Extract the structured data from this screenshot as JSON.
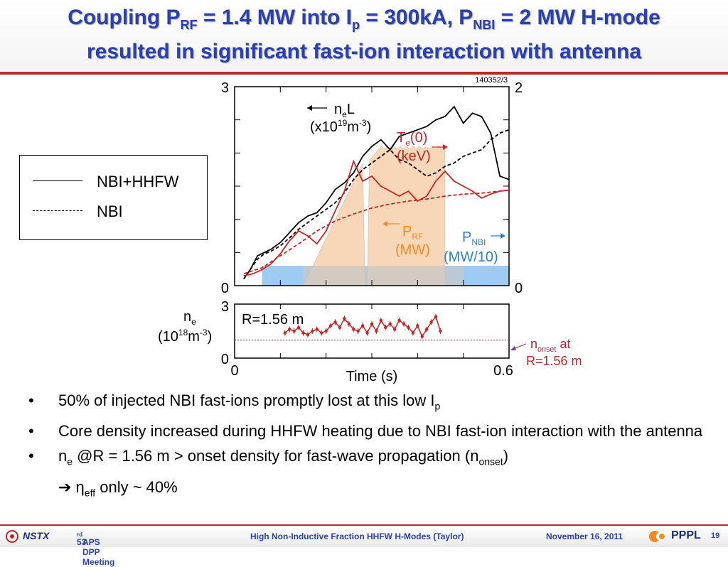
{
  "slide": {
    "title_line1_parts": [
      "Coupling P",
      "RF",
      " = 1.4 MW into I",
      "p",
      " = 300kA, P",
      "NBI",
      " = 2 MW H-mode"
    ],
    "title_line2": "resulted in significant fast-ion interaction with antenna"
  },
  "legend": {
    "items": [
      {
        "label": "NBI+HHFW",
        "style": "solid"
      },
      {
        "label": "NBI",
        "style": "dashed"
      }
    ]
  },
  "chart_data": {
    "type": "line",
    "shot_label": "140352/3",
    "top_panel": {
      "left_axis_ticks": [
        "3",
        "0"
      ],
      "right_axis_ticks": [
        "2",
        "0"
      ],
      "annotations": [
        {
          "text_parts": [
            "n",
            "e",
            "L"
          ],
          "color": "#000000"
        },
        {
          "text_parts": [
            "(x10",
            "19",
            "m",
            "-3",
            ")"
          ],
          "color": "#000000"
        },
        {
          "text_parts": [
            "T",
            "e",
            "(0)"
          ],
          "color": "#cc2222"
        },
        {
          "text": "(keV)",
          "color": "#cc2222"
        },
        {
          "text_parts": [
            "P",
            "RF"
          ],
          "color": "#f08a24"
        },
        {
          "text": "(MW)",
          "color": "#f08a24"
        },
        {
          "text_parts": [
            "P",
            "NBI"
          ],
          "color": "#2a7fd4"
        },
        {
          "text": "(MW/10)",
          "color": "#2a7fd4"
        }
      ],
      "series": [
        {
          "name": "ne L NBI+HHFW",
          "color": "#000000",
          "style": "solid",
          "x": [
            0.02,
            0.035,
            0.05,
            0.065,
            0.08,
            0.1,
            0.12,
            0.14,
            0.16,
            0.18,
            0.2,
            0.22,
            0.24,
            0.26,
            0.28,
            0.3,
            0.32,
            0.34,
            0.36,
            0.38,
            0.4,
            0.42,
            0.44,
            0.46,
            0.48,
            0.5,
            0.52,
            0.54,
            0.56,
            0.58,
            0.6
          ],
          "y": [
            0.1,
            0.25,
            0.45,
            0.5,
            0.55,
            0.65,
            0.8,
            0.95,
            1.05,
            1.1,
            1.25,
            1.45,
            1.55,
            1.7,
            1.95,
            2.1,
            2.2,
            2.05,
            2.25,
            2.3,
            2.35,
            2.4,
            2.5,
            2.55,
            2.7,
            2.45,
            2.6,
            2.55,
            2.3,
            1.65,
            1.6
          ]
        },
        {
          "name": "ne L NBI",
          "color": "#000000",
          "style": "dashed",
          "x": [
            0.02,
            0.035,
            0.05,
            0.065,
            0.08,
            0.1,
            0.12,
            0.14,
            0.16,
            0.18,
            0.2,
            0.22,
            0.24,
            0.26,
            0.28,
            0.3,
            0.32,
            0.34,
            0.36,
            0.38,
            0.4,
            0.42,
            0.44,
            0.46,
            0.48,
            0.5,
            0.52,
            0.54,
            0.56,
            0.58,
            0.6
          ],
          "y": [
            0.1,
            0.25,
            0.4,
            0.48,
            0.52,
            0.6,
            0.72,
            0.85,
            0.95,
            1.05,
            1.15,
            1.25,
            1.4,
            1.6,
            1.75,
            1.85,
            1.95,
            2.05,
            1.9,
            1.85,
            1.75,
            1.65,
            1.7,
            1.8,
            1.85,
            1.95,
            2.0,
            2.05,
            2.2,
            2.3,
            2.35
          ]
        },
        {
          "name": "Te(0) NBI+HHFW",
          "color": "#cc2222",
          "style": "solid",
          "x": [
            0.02,
            0.04,
            0.06,
            0.08,
            0.1,
            0.12,
            0.14,
            0.16,
            0.18,
            0.2,
            0.22,
            0.24,
            0.26,
            0.28,
            0.3,
            0.32,
            0.34,
            0.36,
            0.38,
            0.4,
            0.42,
            0.44,
            0.46,
            0.48,
            0.5,
            0.52,
            0.54,
            0.56,
            0.58,
            0.6
          ],
          "y": [
            0.1,
            0.12,
            0.16,
            0.22,
            0.32,
            0.45,
            0.55,
            0.5,
            0.42,
            0.55,
            0.75,
            0.95,
            1.25,
            1.05,
            1.1,
            1.0,
            0.95,
            0.9,
            0.95,
            0.85,
            0.9,
            1.05,
            1.15,
            1.05,
            1.0,
            0.95,
            0.88,
            0.92,
            0.95,
            0.96
          ]
        },
        {
          "name": "Te(0) NBI",
          "color": "#cc2222",
          "style": "dashed",
          "x": [
            0.02,
            0.06,
            0.1,
            0.14,
            0.18,
            0.22,
            0.26,
            0.3,
            0.34,
            0.38,
            0.42,
            0.46,
            0.5,
            0.54,
            0.58,
            0.6
          ],
          "y": [
            0.12,
            0.18,
            0.3,
            0.42,
            0.55,
            0.65,
            0.72,
            0.78,
            0.82,
            0.85,
            0.87,
            0.9,
            0.92,
            0.93,
            0.95,
            0.96
          ]
        }
      ],
      "prf_region": {
        "color": "#f7d3b0",
        "x_start": 0.15,
        "x_end": 0.46,
        "peak": 1.4
      },
      "pnbi_region": {
        "color": "#9ecbf2",
        "x_start": 0.06,
        "x_end": 0.6,
        "level": 0.2
      }
    },
    "bottom_panel": {
      "label": "R=1.56 m",
      "left_axis_ticks": [
        "3",
        "0"
      ],
      "ylabel_parts": [
        "n",
        "e"
      ],
      "yunit_parts": [
        "(10",
        "18",
        "m",
        "-3",
        ")"
      ],
      "xlabel": "Time (s)",
      "xticks": [
        "0",
        "0.6"
      ],
      "onset_label_parts": [
        "n",
        "onset",
        " at"
      ],
      "onset_label_line2": "R=1.56 m",
      "onset_level": 1.0,
      "series": [
        {
          "name": "ne at R=1.56 m",
          "color": "#cc2222",
          "style": "solid-with-errorbars",
          "x": [
            0.11,
            0.12,
            0.13,
            0.14,
            0.15,
            0.16,
            0.17,
            0.18,
            0.19,
            0.2,
            0.21,
            0.22,
            0.23,
            0.24,
            0.25,
            0.26,
            0.27,
            0.28,
            0.29,
            0.3,
            0.31,
            0.32,
            0.33,
            0.34,
            0.35,
            0.36,
            0.37,
            0.38,
            0.39,
            0.4,
            0.41,
            0.42,
            0.43,
            0.44,
            0.45
          ],
          "y": [
            1.4,
            1.6,
            1.5,
            1.7,
            1.4,
            1.3,
            1.5,
            1.6,
            1.4,
            1.5,
            1.8,
            2.0,
            1.7,
            2.2,
            1.9,
            1.6,
            1.5,
            1.8,
            1.4,
            1.9,
            1.5,
            2.1,
            1.7,
            1.9,
            1.6,
            2.1,
            1.9,
            1.7,
            1.4,
            1.8,
            1.2,
            1.6,
            2.0,
            2.3,
            1.5
          ]
        }
      ]
    },
    "x_range": [
      0,
      0.6
    ],
    "y_range_top_left": [
      0,
      3
    ],
    "y_range_top_right": [
      0,
      2
    ],
    "y_range_bottom": [
      0,
      3
    ]
  },
  "bullets": [
    {
      "parts": [
        "50% of injected NBI fast-ions promptly lost at this low I",
        "p"
      ]
    },
    {
      "text": "Core density increased during HHFW heating due to NBI fast-ion interaction with the antenna"
    },
    {
      "parts_line1": [
        "n",
        "e",
        " @R = 1.56 m > onset density for fast-wave propagation (n",
        "onset",
        ")"
      ],
      "parts_line2": [
        "➔ ",
        "η",
        "eff",
        " only ~ 40%"
      ]
    }
  ],
  "bullet_symbol": "•",
  "footer": {
    "logo_text": "NSTX",
    "meeting_parts": [
      "53",
      "rd",
      " APS DPP Meeting"
    ],
    "talk": "High Non-Inductive Fraction HHFW H-Modes (Taylor)",
    "date": "November 16, 2011",
    "org": "PPPL",
    "page": "19"
  },
  "colors": {
    "title": "#2a3fb0",
    "accent_red": "#b8282e",
    "te": "#cc2222",
    "prf": "#f08a24",
    "pnbi": "#2a7fd4"
  }
}
